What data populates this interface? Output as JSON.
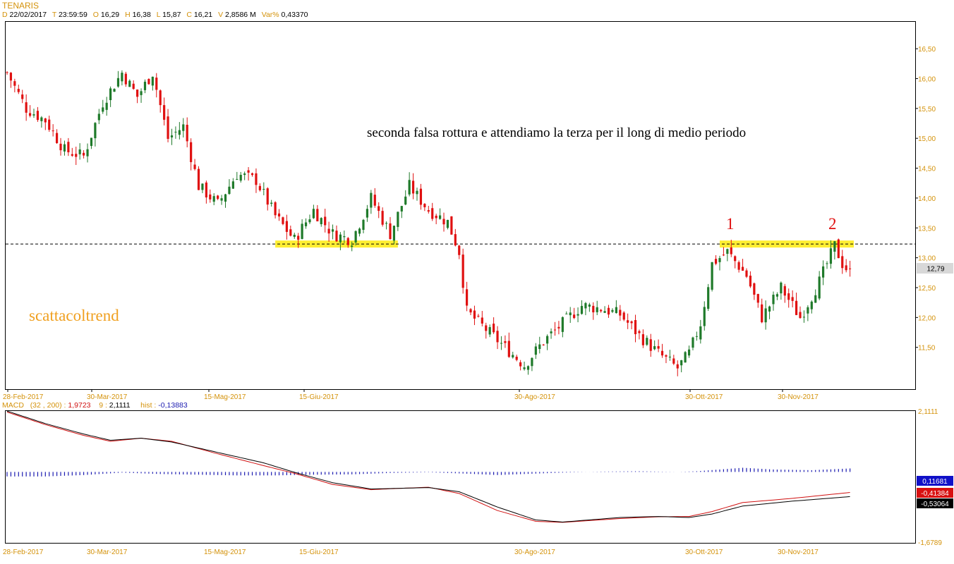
{
  "header": {
    "symbol": "TENARIS",
    "date_key": "D",
    "date": "22/02/2017",
    "time_key": "T",
    "time": "23:59:59",
    "open_key": "O",
    "open": "16,29",
    "high_key": "H",
    "high": "16,38",
    "low_key": "L",
    "low": "15,87",
    "close_key": "C",
    "close": "16,21",
    "volume_key": "V",
    "volume": "2,8586 M",
    "varpct_key": "Var%",
    "varpct": "0,43370"
  },
  "macd_header": {
    "label": "MACD",
    "params": "(32 , 200) :",
    "macd_value": "1,9723",
    "signal_period": "9 :",
    "signal_value": "2,1111",
    "hist_label": "hist :",
    "hist_value": "-0,13883"
  },
  "annotations": {
    "comment": "seconda falsa rottura e attendiamo la terza per il long di medio periodo",
    "watermark": "scattacoltrend",
    "mark_1": "1",
    "mark_2": "2"
  },
  "colors": {
    "up_candle": "#1f7a2a",
    "down_candle": "#e01010",
    "axis_text": "#d4920a",
    "highlight": "#ffee33",
    "macd_line": "#000000",
    "signal_line": "#d01010",
    "histogram": "#1a1ab0"
  },
  "chart_data": [
    {
      "type": "candlestick",
      "title": "TENARIS",
      "x_ticks": [
        "28-Feb-2017",
        "30-Mar-2017",
        "15-Mag-2017",
        "15-Giu-2017",
        "30-Ago-2017",
        "30-Ott-2017",
        "30-Nov-2017"
      ],
      "y_ticks": [
        "16,50",
        "16,00",
        "15,50",
        "15,00",
        "14,50",
        "14,00",
        "13,50",
        "13,00",
        "12,50",
        "12,00",
        "11,50"
      ],
      "ylim": [
        10.8,
        16.95
      ],
      "last_price_label": "12,79",
      "last_price": 12.79,
      "horizontal_level": 13.23,
      "close_path": [
        [
          0,
          16.1
        ],
        [
          5,
          15.5
        ],
        [
          10,
          15.3
        ],
        [
          15,
          14.8
        ],
        [
          20,
          14.7
        ],
        [
          25,
          15.6
        ],
        [
          30,
          16.1
        ],
        [
          34,
          15.7
        ],
        [
          38,
          16.1
        ],
        [
          42,
          15.0
        ],
        [
          46,
          15.2
        ],
        [
          50,
          14.2
        ],
        [
          55,
          13.9
        ],
        [
          60,
          14.4
        ],
        [
          65,
          14.3
        ],
        [
          70,
          13.7
        ],
        [
          75,
          13.3
        ],
        [
          80,
          13.8
        ],
        [
          85,
          13.4
        ],
        [
          90,
          13.3
        ],
        [
          95,
          14.0
        ],
        [
          100,
          13.4
        ],
        [
          105,
          14.2
        ],
        [
          110,
          13.8
        ],
        [
          115,
          13.6
        ],
        [
          118,
          13.1
        ],
        [
          120,
          12.1
        ],
        [
          125,
          11.8
        ],
        [
          130,
          11.5
        ],
        [
          135,
          11.2
        ],
        [
          140,
          11.6
        ],
        [
          145,
          11.9
        ],
        [
          150,
          12.2
        ],
        [
          155,
          12.15
        ],
        [
          160,
          12.05
        ],
        [
          165,
          11.7
        ],
        [
          170,
          11.4
        ],
        [
          175,
          11.15
        ],
        [
          178,
          11.4
        ],
        [
          181,
          11.9
        ],
        [
          184,
          12.9
        ],
        [
          188,
          13.1
        ],
        [
          193,
          12.7
        ],
        [
          197,
          12.0
        ],
        [
          202,
          12.5
        ],
        [
          207,
          12.0
        ],
        [
          212,
          12.6
        ],
        [
          216,
          13.2
        ],
        [
          218,
          12.9
        ],
        [
          220,
          12.75
        ]
      ],
      "highlight_zones": [
        {
          "from": 70,
          "to": 102,
          "level": 13.23
        },
        {
          "from": 186,
          "to": 221,
          "level": 13.23
        }
      ]
    },
    {
      "type": "line",
      "title": "MACD",
      "y_ticks": [
        "2,1111",
        "-1,6789"
      ],
      "ylim": [
        -1.6789,
        2.1111
      ],
      "value_labels": [
        "0,11681",
        "-0,41384",
        "-0,53064"
      ],
      "series": [
        {
          "name": "MACD",
          "color": "#000000",
          "points": [
            [
              0,
              2.11
            ],
            [
              10,
              1.75
            ],
            [
              20,
              1.45
            ],
            [
              27,
              1.27
            ],
            [
              35,
              1.33
            ],
            [
              43,
              1.22
            ],
            [
              55,
              0.92
            ],
            [
              67,
              0.62
            ],
            [
              75,
              0.35
            ],
            [
              85,
              0.05
            ],
            [
              95,
              -0.13
            ],
            [
              103,
              -0.11
            ],
            [
              110,
              -0.09
            ],
            [
              118,
              -0.21
            ],
            [
              128,
              -0.65
            ],
            [
              138,
              -1.02
            ],
            [
              145,
              -1.08
            ],
            [
              160,
              -0.95
            ],
            [
              170,
              -0.92
            ],
            [
              178,
              -0.95
            ],
            [
              184,
              -0.85
            ],
            [
              192,
              -0.62
            ],
            [
              205,
              -0.48
            ],
            [
              220,
              -0.35
            ]
          ]
        },
        {
          "name": "signal",
          "color": "#d01010",
          "points": [
            [
              0,
              2.08
            ],
            [
              10,
              1.72
            ],
            [
              20,
              1.41
            ],
            [
              27,
              1.24
            ],
            [
              35,
              1.33
            ],
            [
              43,
              1.24
            ],
            [
              55,
              0.88
            ],
            [
              67,
              0.54
            ],
            [
              75,
              0.32
            ],
            [
              85,
              0.0
            ],
            [
              95,
              -0.15
            ],
            [
              103,
              -0.11
            ],
            [
              110,
              -0.08
            ],
            [
              118,
              -0.26
            ],
            [
              128,
              -0.75
            ],
            [
              138,
              -1.06
            ],
            [
              145,
              -1.09
            ],
            [
              160,
              -0.98
            ],
            [
              170,
              -0.93
            ],
            [
              178,
              -0.92
            ],
            [
              184,
              -0.78
            ],
            [
              192,
              -0.52
            ],
            [
              205,
              -0.4
            ],
            [
              220,
              -0.23
            ]
          ]
        }
      ],
      "histogram": {
        "name": "hist",
        "color": "#1a1ab0",
        "baseline": 0.36,
        "points": [
          [
            0,
            -0.13
          ],
          [
            10,
            -0.13
          ],
          [
            20,
            -0.09
          ],
          [
            30,
            -0.02
          ],
          [
            40,
            -0.06
          ],
          [
            50,
            -0.08
          ],
          [
            60,
            -0.1
          ],
          [
            70,
            -0.1
          ],
          [
            80,
            -0.08
          ],
          [
            90,
            -0.07
          ],
          [
            100,
            -0.03
          ],
          [
            110,
            -0.01
          ],
          [
            120,
            -0.05
          ],
          [
            128,
            -0.09
          ],
          [
            135,
            -0.06
          ],
          [
            145,
            -0.02
          ],
          [
            155,
            0.01
          ],
          [
            165,
            0.02
          ],
          [
            175,
            0.0
          ],
          [
            180,
            0.02
          ],
          [
            186,
            0.07
          ],
          [
            192,
            0.12
          ],
          [
            200,
            0.07
          ],
          [
            210,
            0.05
          ],
          [
            220,
            0.1
          ]
        ]
      }
    }
  ]
}
